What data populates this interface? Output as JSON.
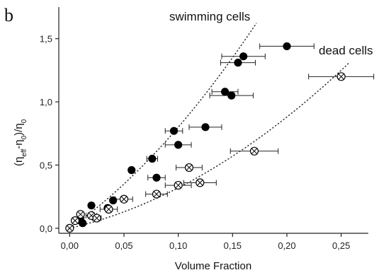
{
  "chart_data": {
    "type": "scatter",
    "panel_label": "b",
    "xlabel": "Volume Fraction",
    "ylabel": "(ηeff-η0)/η0",
    "xlim": [
      -0.01,
      0.275
    ],
    "ylim": [
      -0.04,
      1.75
    ],
    "x_ticks": [
      {
        "value": 0.0,
        "label": "0,00"
      },
      {
        "value": 0.05,
        "label": "0,05"
      },
      {
        "value": 0.1,
        "label": "0,10"
      },
      {
        "value": 0.15,
        "label": "0,15"
      },
      {
        "value": 0.2,
        "label": "0,20"
      },
      {
        "value": 0.25,
        "label": "0,25"
      }
    ],
    "y_ticks": [
      {
        "value": 0.0,
        "label": "0,0"
      },
      {
        "value": 0.5,
        "label": "0,5"
      },
      {
        "value": 1.0,
        "label": "1,0"
      },
      {
        "value": 1.5,
        "label": "1,5"
      }
    ],
    "grid": false,
    "series": [
      {
        "name": "swimming cells",
        "marker": "filled-circle",
        "color": "#000000",
        "points": [
          {
            "x": 0.01,
            "y": 0.06,
            "xerr": 0.0
          },
          {
            "x": 0.012,
            "y": 0.04,
            "xerr": 0.0
          },
          {
            "x": 0.02,
            "y": 0.18,
            "xerr": 0.0
          },
          {
            "x": 0.035,
            "y": 0.16,
            "xerr": 0.0
          },
          {
            "x": 0.04,
            "y": 0.22,
            "xerr": 0.0
          },
          {
            "x": 0.057,
            "y": 0.46,
            "xerr": 0.0
          },
          {
            "x": 0.076,
            "y": 0.55,
            "xerr": 0.005
          },
          {
            "x": 0.08,
            "y": 0.4,
            "xerr": 0.008
          },
          {
            "x": 0.096,
            "y": 0.77,
            "xerr": 0.008
          },
          {
            "x": 0.1,
            "y": 0.66,
            "xerr": 0.012
          },
          {
            "x": 0.125,
            "y": 0.8,
            "xerr": 0.015
          },
          {
            "x": 0.143,
            "y": 1.08,
            "xerr": 0.012
          },
          {
            "x": 0.149,
            "y": 1.05,
            "xerr": 0.02
          },
          {
            "x": 0.155,
            "y": 1.31,
            "xerr": 0.016
          },
          {
            "x": 0.16,
            "y": 1.36,
            "xerr": 0.02
          },
          {
            "x": 0.2,
            "y": 1.44,
            "xerr": 0.025
          }
        ]
      },
      {
        "name": "dead cells",
        "marker": "crossed-circle",
        "color": "#000000",
        "points": [
          {
            "x": 0.0,
            "y": 0.0,
            "xerr": 0.0
          },
          {
            "x": 0.005,
            "y": 0.06,
            "xerr": 0.0
          },
          {
            "x": 0.01,
            "y": 0.11,
            "xerr": 0.0
          },
          {
            "x": 0.02,
            "y": 0.1,
            "xerr": 0.005
          },
          {
            "x": 0.025,
            "y": 0.08,
            "xerr": 0.004
          },
          {
            "x": 0.036,
            "y": 0.15,
            "xerr": 0.008
          },
          {
            "x": 0.05,
            "y": 0.23,
            "xerr": 0.008
          },
          {
            "x": 0.08,
            "y": 0.27,
            "xerr": 0.01
          },
          {
            "x": 0.1,
            "y": 0.34,
            "xerr": 0.012
          },
          {
            "x": 0.11,
            "y": 0.48,
            "xerr": 0.012
          },
          {
            "x": 0.12,
            "y": 0.36,
            "xerr": 0.015
          },
          {
            "x": 0.17,
            "y": 0.61,
            "xerr": 0.022
          },
          {
            "x": 0.25,
            "y": 1.2,
            "xerr": 0.03
          }
        ]
      }
    ],
    "fits": [
      {
        "series": "swimming cells",
        "style": "dotted",
        "a": 6.0,
        "b": 20.0,
        "x_range": [
          0.0,
          0.172
        ]
      },
      {
        "series": "dead cells",
        "style": "dotted",
        "a": 2.0,
        "b": 12.0,
        "x_range": [
          0.0,
          0.258
        ]
      }
    ],
    "annotations": [
      {
        "text": "swimming cells",
        "near_series": "swimming cells",
        "placement": "top-center"
      },
      {
        "text": "dead cells",
        "near_series": "dead cells",
        "placement": "top-right"
      }
    ]
  }
}
